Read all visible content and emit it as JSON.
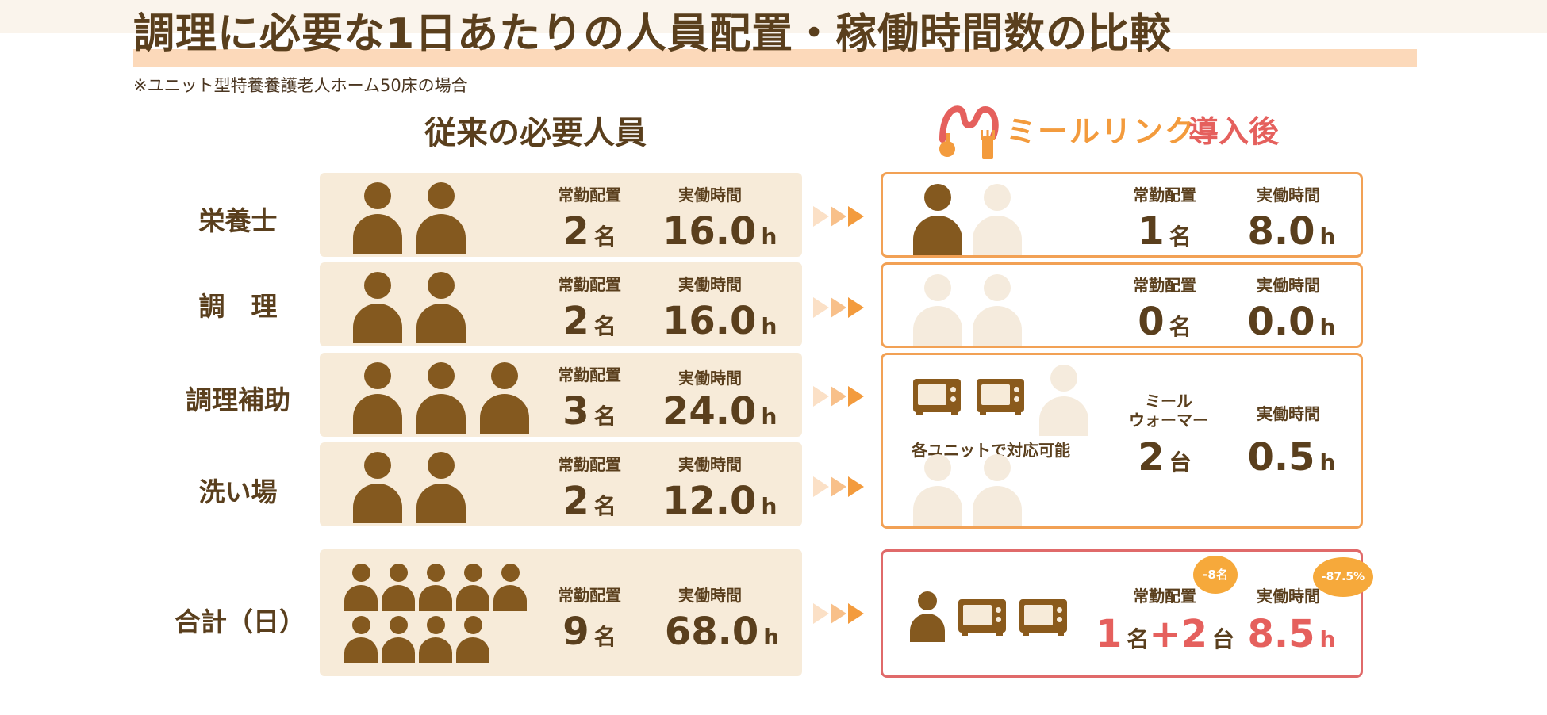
{
  "title": "調理に必要な1日あたりの人員配置・稼働時間数の比較",
  "subtitle": "※ユニット型特養養護老人ホーム50床の場合",
  "before_heading": "従来の必要人員",
  "after": {
    "logo_text": "ミールリンク",
    "heading": "導入後"
  },
  "labels": {
    "staff": "常勤配置",
    "hours": "実働時間",
    "warmer": "ミール\nウォーマー",
    "warmer_line1": "ミール",
    "warmer_line2": "ウォーマー",
    "unit_note": "各ユニットで対応可能"
  },
  "units": {
    "people": "名",
    "hours": "h",
    "devices": "台"
  },
  "rows": [
    {
      "label": "栄養士",
      "before_staff": "2",
      "before_hours": "16.0",
      "after_staff": "1",
      "after_hours": "8.0"
    },
    {
      "label": "調　理",
      "before_staff": "2",
      "before_hours": "16.0",
      "after_staff": "0",
      "after_hours": "0.0"
    },
    {
      "label": "調理補助",
      "before_staff": "3",
      "before_hours": "24.0"
    },
    {
      "label": "洗い場",
      "before_staff": "2",
      "before_hours": "12.0"
    }
  ],
  "merged": {
    "devices": "2",
    "hours": "0.5"
  },
  "total": {
    "label": "合計（日）",
    "before_staff": "9",
    "before_hours": "68.0",
    "after_staff": "1",
    "after_devices": "2",
    "after_hours": "8.5",
    "badge_staff": "-8名",
    "badge_hours": "-87.5%"
  },
  "colors": {
    "person_active": "#84591f",
    "person_faded": "#f5ebdd",
    "left_box": "#f7ebd9",
    "right_border": "#f2a155",
    "total_border": "#e06a6a",
    "accent_red": "#e5605d",
    "badge": "#f6a93b"
  }
}
